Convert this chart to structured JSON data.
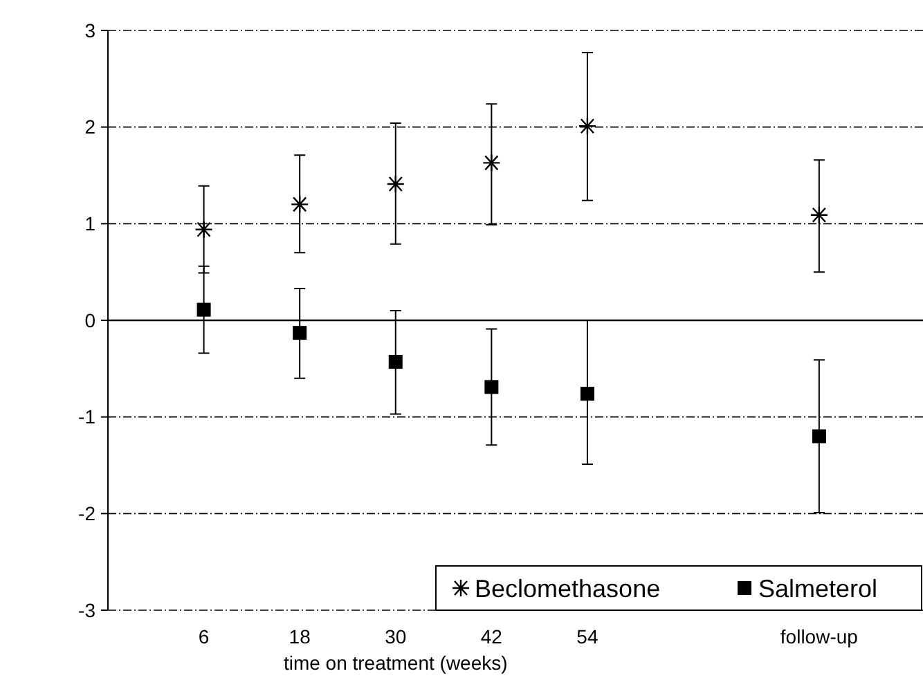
{
  "chart_data": {
    "type": "scatter",
    "xlabel": "time on treatment (weeks)",
    "x": [
      6,
      18,
      30,
      42,
      54,
      83
    ],
    "xlim": [
      -6,
      96
    ],
    "xticks": [
      6,
      18,
      30,
      42,
      54,
      {
        "value": 83,
        "label": "follow-up"
      }
    ],
    "ylim": [
      -3,
      3
    ],
    "yticks": [
      -3,
      -2,
      -1,
      0,
      1,
      2,
      3
    ],
    "grid": "y",
    "line_style": "dashed",
    "legend": "bottom right",
    "ref_lines": [
      {
        "axis": "y",
        "value": 0,
        "color": "#000000",
        "line_style": "solid"
      }
    ],
    "series": [
      {
        "name": "Beclomethasone",
        "color": "#000000",
        "marker": "cross",
        "values": [
          0.94,
          1.2,
          1.41,
          1.63,
          2.01,
          1.09
        ],
        "errors": [
          [
            0.49,
            1.39
          ],
          [
            0.7,
            1.71
          ],
          [
            0.79,
            2.04
          ],
          [
            0.99,
            2.24
          ],
          [
            1.24,
            2.77
          ],
          [
            0.5,
            1.66
          ]
        ]
      },
      {
        "name": "Salmeterol",
        "color": "#000000",
        "marker": "square",
        "values": [
          0.11,
          -0.13,
          -0.43,
          -0.69,
          -0.76,
          -1.2
        ],
        "errors": [
          [
            -0.34,
            0.56
          ],
          [
            -0.6,
            0.33
          ],
          [
            -0.97,
            0.1
          ],
          [
            -1.29,
            -0.09
          ],
          [
            -1.49,
            0
          ],
          [
            -1.99,
            -0.41
          ]
        ]
      }
    ]
  }
}
